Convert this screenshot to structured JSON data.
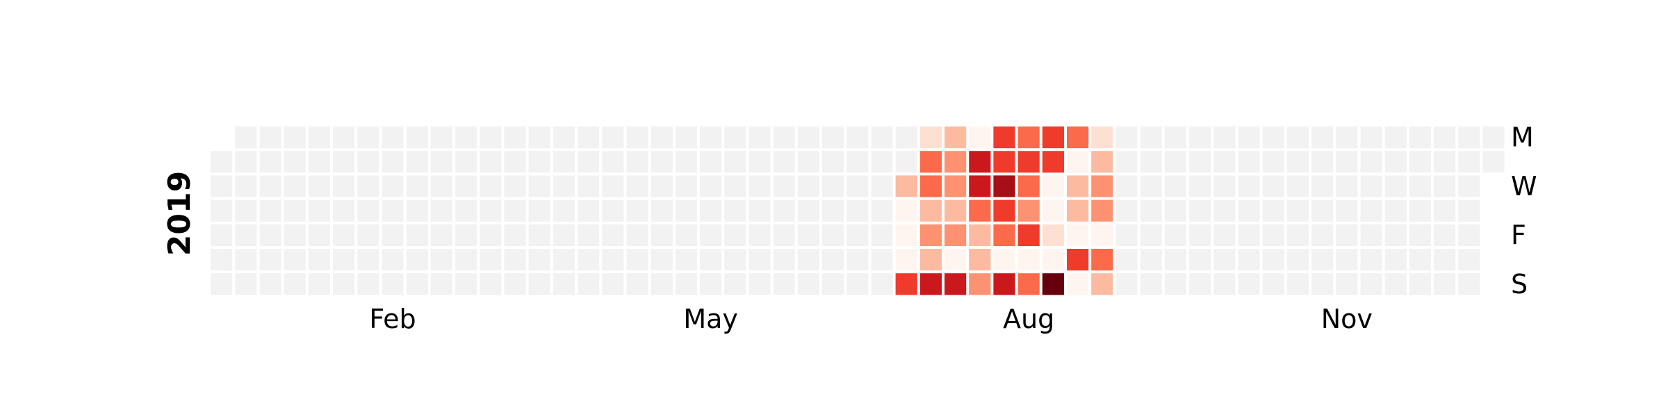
{
  "chart_data": {
    "type": "heatmap",
    "title": "",
    "year_label": "2019",
    "xlabel": "",
    "ylabel": "",
    "month_ticks": [
      {
        "label": "Feb",
        "week": 7
      },
      {
        "label": "May",
        "week": 20
      },
      {
        "label": "Aug",
        "week": 33
      },
      {
        "label": "Nov",
        "week": 46
      }
    ],
    "weekday_ticks": [
      {
        "label": "M",
        "row": 0
      },
      {
        "label": "W",
        "row": 2
      },
      {
        "label": "F",
        "row": 4
      },
      {
        "label": "S",
        "row": 6
      }
    ],
    "week_offset": 28,
    "color_scale": [
      "#fff5f0",
      "#fee0d2",
      "#fcbba1",
      "#fc9272",
      "#fb6a4a",
      "#ef3b2c",
      "#cb181d",
      "#a50f15",
      "#67000d"
    ],
    "empty_color": "#f2f2f2",
    "grid": [
      [
        null,
        1,
        2,
        0,
        5,
        4,
        5,
        4,
        1
      ],
      [
        null,
        4,
        3,
        6,
        5,
        5,
        5,
        0,
        2
      ],
      [
        2,
        4,
        3,
        6,
        7,
        4,
        0,
        2,
        3
      ],
      [
        0,
        2,
        2,
        4,
        5,
        3,
        0,
        2,
        3
      ],
      [
        0,
        3,
        3,
        2,
        4,
        5,
        1,
        0,
        0
      ],
      [
        0,
        2,
        0,
        2,
        0,
        0,
        0,
        5,
        4
      ],
      [
        5,
        6,
        6,
        3,
        6,
        4,
        8,
        0,
        2
      ]
    ]
  }
}
